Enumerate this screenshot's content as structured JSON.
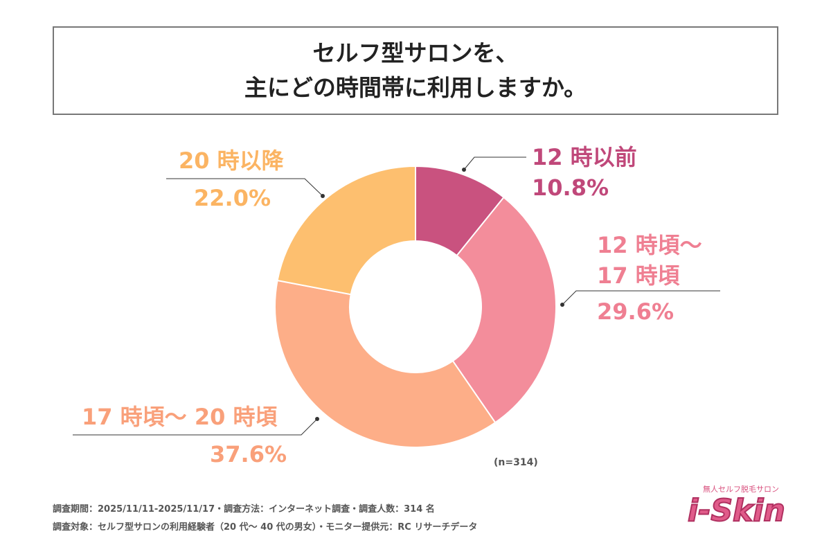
{
  "title": {
    "line1": "セルフ型サロンを、",
    "line2": "主にどの時間帯に利用しますか。"
  },
  "chart_data": {
    "type": "pie",
    "donut": true,
    "categories": [
      "12 時以前",
      "12 時頃〜 17 時頃",
      "17 時頃〜 20 時頃",
      "20 時以降"
    ],
    "values": [
      10.8,
      29.6,
      37.6,
      22.0
    ],
    "value_labels": [
      "10.8%",
      "29.6%",
      "37.6%",
      "22.0%"
    ],
    "label_lines": [
      [
        "12 時以前"
      ],
      [
        "12 時頃〜",
        "17 時頃"
      ],
      [
        "17 時頃〜 20 時頃"
      ],
      [
        "20 時以降"
      ]
    ],
    "colors": [
      "#c9527f",
      "#f38d9b",
      "#fdae88",
      "#fdbf6f"
    ],
    "label_colors": [
      "#c0487a",
      "#ef7f92",
      "#f9a07a",
      "#fbb463"
    ],
    "start": "top",
    "direction": "clockwise",
    "note": "(n=314)"
  },
  "footer": {
    "line1": "調査期間：2025/11/11-2025/11/17・調査方法：インターネット調査・調査人数：314 名",
    "line2": "調査対象：セルフ型サロンの利用経験者（20 代〜 40 代の男女）・モニター提供元：RC リサーチデータ"
  },
  "logo": {
    "subtitle": "無人セルフ脱毛サロン",
    "name": "i-Skin"
  }
}
